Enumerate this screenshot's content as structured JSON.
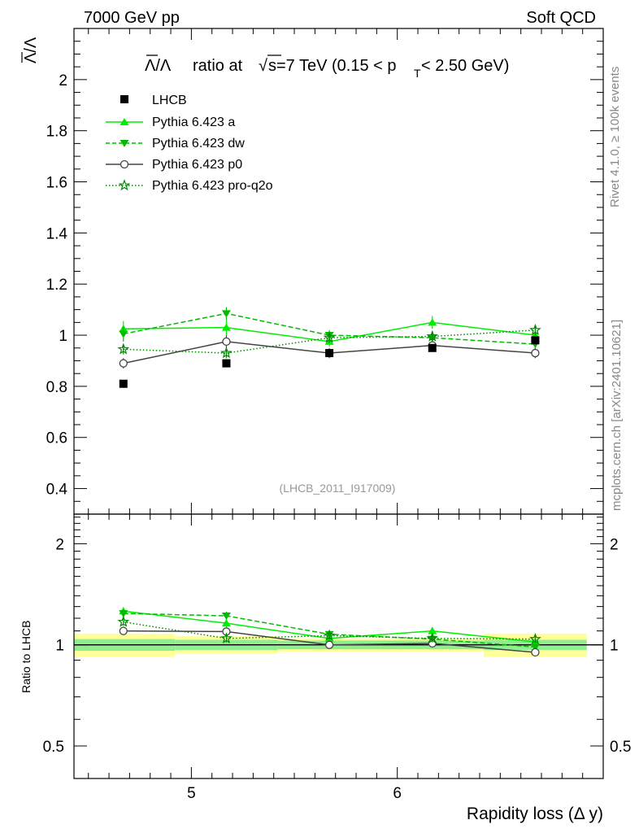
{
  "header": {
    "left": "7000 GeV pp",
    "right": "Soft QCD"
  },
  "side_labels": {
    "rivet": "Rivet 4.1.0, ≥ 100k events",
    "mcplots": "mcplots.cern.ch [arXiv:2401.10621]"
  },
  "watermark": "(LHCB_2011_I917009)",
  "colors": {
    "data": "#000000",
    "pythia_a": "#00ee00",
    "pythia_dw": "#00bb00",
    "pythia_p0": "#444444",
    "pythia_pro_q2o": "#008800",
    "band_inner": "#90ee90",
    "band_outer": "#ffff99"
  },
  "chart_data": [
    {
      "type": "scatter",
      "panel": "main",
      "title": "Λ̅/Λ ratio at √s=7 TeV (0.15 < p_T < 2.50 GeV)",
      "title_main": "ratio at",
      "title_energy": "s=7 TeV (0.15 < p",
      "title_sub": "T",
      "title_tail": " < 2.50 GeV)",
      "title_lambda": "Λ/Λ",
      "ylabel": "Λ/Λ",
      "xlabel": "Rapidity loss (Δ y)",
      "xlim": [
        4.43,
        7.0
      ],
      "ylim": [
        0.3,
        2.2
      ],
      "yticks": [
        0.4,
        0.6,
        0.8,
        1,
        1.2,
        1.4,
        1.6,
        1.8,
        2
      ],
      "ytick_labels": [
        "0.4",
        "0.6",
        "0.8",
        "1",
        "1.2",
        "1.4",
        "1.6",
        "1.8",
        "2"
      ],
      "x": [
        4.67,
        5.17,
        5.67,
        6.17,
        6.67
      ],
      "series": [
        {
          "name": "LHCB",
          "style": "data",
          "values": [
            0.81,
            0.89,
            0.93,
            0.95,
            0.98
          ],
          "errors": [
            0.01,
            0.01,
            0.01,
            0.01,
            0.01
          ]
        },
        {
          "name": "Pythia 6.423 a",
          "style": "a",
          "values": [
            1.025,
            1.03,
            0.975,
            1.05,
            1.0
          ],
          "errors": [
            0.03,
            0.03,
            0.02,
            0.025,
            0.02
          ]
        },
        {
          "name": "Pythia 6.423 dw",
          "style": "dw",
          "values": [
            1.005,
            1.085,
            1.0,
            0.99,
            0.965
          ],
          "errors": [
            0.03,
            0.025,
            0.02,
            0.02,
            0.02
          ]
        },
        {
          "name": "Pythia 6.423 p0",
          "style": "p0",
          "values": [
            0.89,
            0.975,
            0.93,
            0.96,
            0.93
          ],
          "errors": [
            0.02,
            0.025,
            0.02,
            0.015,
            0.02
          ]
        },
        {
          "name": "Pythia 6.423 pro-q2o",
          "style": "q2o",
          "values": [
            0.945,
            0.93,
            0.99,
            0.995,
            1.02
          ],
          "errors": [
            0.02,
            0.02,
            0.02,
            0.02,
            0.02
          ]
        }
      ]
    },
    {
      "type": "scatter",
      "panel": "ratio",
      "ylabel": "Ratio to LHCB",
      "xlabel": "Rapidity loss (Δ y)",
      "xlim": [
        4.43,
        7.0
      ],
      "ylim": [
        0.4,
        2.45
      ],
      "yscale": "log",
      "yticks": [
        0.5,
        1,
        2
      ],
      "ytick_labels": [
        "0.5",
        "1",
        "2"
      ],
      "xticks": [
        5,
        6
      ],
      "xtick_labels": [
        "5",
        "6"
      ],
      "x": [
        4.67,
        5.17,
        5.67,
        6.17,
        6.67
      ],
      "bins": [
        [
          4.43,
          4.92
        ],
        [
          4.92,
          5.42
        ],
        [
          5.42,
          5.92
        ],
        [
          5.92,
          6.42
        ],
        [
          6.42,
          6.92
        ]
      ],
      "band_inner": [
        0.04,
        0.035,
        0.03,
        0.03,
        0.035
      ],
      "band_outer": [
        0.08,
        0.06,
        0.045,
        0.045,
        0.08
      ],
      "series": [
        {
          "name": "Pythia 6.423 a",
          "style": "a",
          "values": [
            1.26,
            1.16,
            1.045,
            1.1,
            1.02
          ]
        },
        {
          "name": "Pythia 6.423 dw",
          "style": "dw",
          "values": [
            1.24,
            1.22,
            1.075,
            1.04,
            0.985
          ]
        },
        {
          "name": "Pythia 6.423 p0",
          "style": "p0",
          "values": [
            1.1,
            1.095,
            1.0,
            1.01,
            0.95
          ]
        },
        {
          "name": "Pythia 6.423 pro-q2o",
          "style": "q2o",
          "values": [
            1.17,
            1.045,
            1.065,
            1.045,
            1.04
          ]
        }
      ]
    }
  ]
}
